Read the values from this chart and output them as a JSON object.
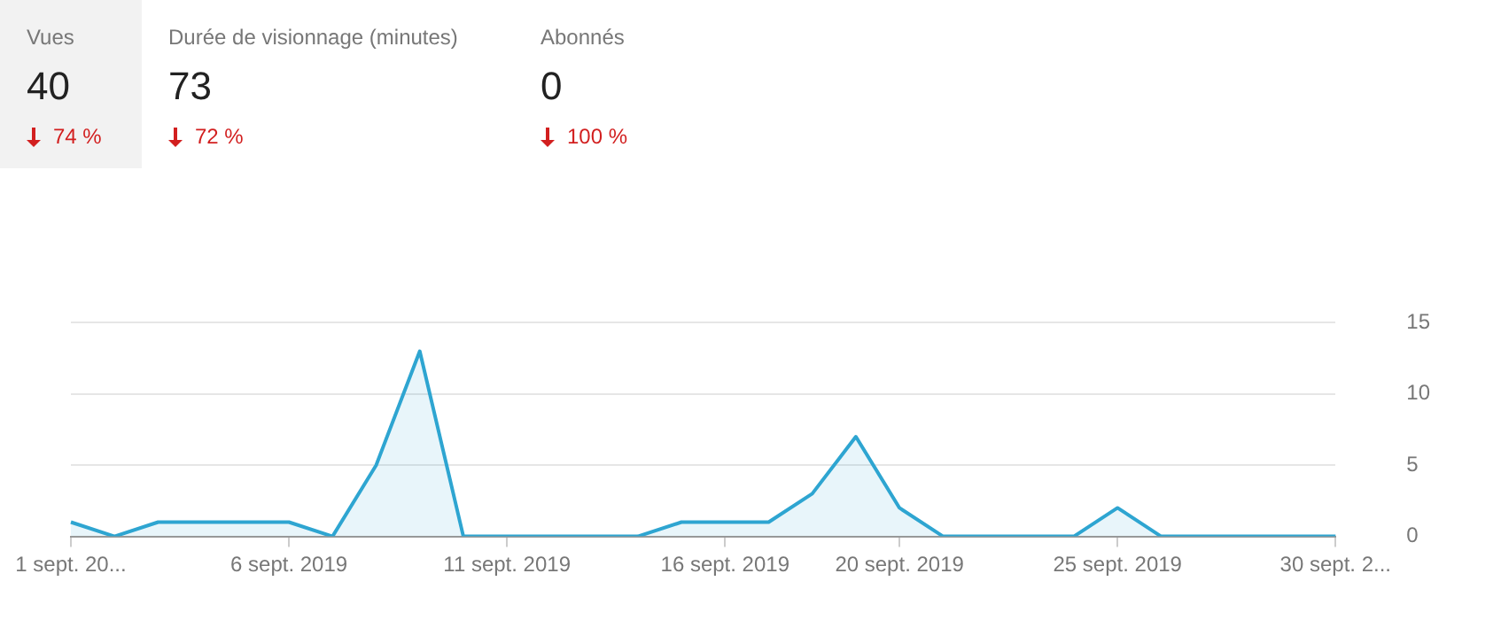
{
  "chart_data": [
    {
      "type": "other",
      "annotations": [
        "Vues",
        "40",
        "74 %",
        "Durée de visionnage (minutes)",
        "73",
        "72 %",
        "Abonnés",
        "0",
        "100 %"
      ]
    },
    {
      "type": "area",
      "categories": [
        "1 sept. 20...",
        null,
        null,
        null,
        null,
        "6 sept. 2019",
        null,
        null,
        null,
        null,
        "11 sept. 2019",
        null,
        null,
        null,
        null,
        "16 sept. 2019",
        null,
        null,
        null,
        "20 sept. 2019",
        null,
        null,
        null,
        null,
        "25 sept. 2019",
        null,
        null,
        null,
        null,
        "30 sept. 2..."
      ],
      "series": [
        {
          "color": "#2ea5d1",
          "values": [
            1,
            0,
            1,
            1,
            1,
            1,
            0,
            5,
            13,
            0,
            0,
            0,
            0,
            0,
            1,
            1,
            1,
            3,
            7,
            2,
            0,
            0,
            0,
            0,
            2,
            0,
            0,
            0,
            0,
            0
          ]
        }
      ],
      "ylim": [
        0,
        15
      ],
      "yticks": [
        0,
        5,
        10,
        15
      ],
      "grid": "y",
      "legend": false,
      "marker": "none"
    }
  ]
}
